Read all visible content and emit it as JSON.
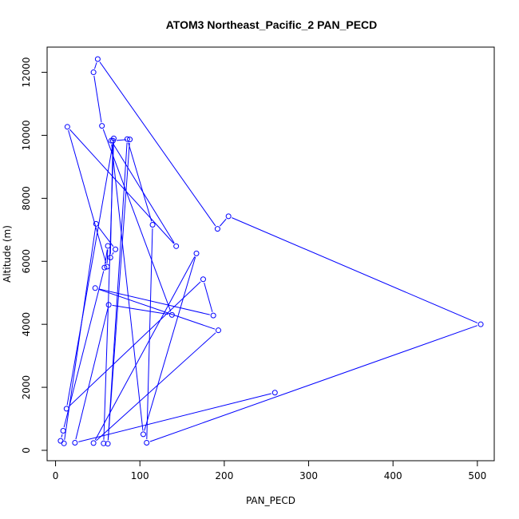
{
  "chart_data": {
    "type": "line",
    "title": "ATOM3 Northeast_Pacific_2 PAN_PECD",
    "xlabel": "PAN_PECD",
    "ylabel": "Altitude (m)",
    "xlim": [
      -10,
      520
    ],
    "ylim": [
      -330,
      12800
    ],
    "xticks": [
      0,
      100,
      200,
      300,
      400,
      500
    ],
    "yticks": [
      0,
      2000,
      4000,
      6000,
      8000,
      10000,
      12000
    ],
    "grid": false,
    "legend": "none",
    "line_color": "#0000ff",
    "marker": "open-circle",
    "series": [
      {
        "x": [
          260,
          23,
          63,
          138,
          55,
          45,
          50,
          192,
          205,
          504,
          108,
          115,
          85,
          62,
          88,
          68,
          65,
          71,
          48,
          10,
          6,
          9,
          58,
          62,
          61,
          14,
          143,
          66,
          104,
          167,
          45,
          193,
          47,
          187,
          175,
          13,
          69,
          57
        ],
        "y": [
          1830,
          240,
          4620,
          4300,
          10300,
          12000,
          12420,
          7030,
          7430,
          4000,
          240,
          7160,
          9880,
          210,
          9870,
          9830,
          6120,
          6380,
          7190,
          220,
          300,
          620,
          5800,
          6490,
          5830,
          10270,
          6480,
          9830,
          510,
          6250,
          230,
          3810,
          5150,
          4280,
          5430,
          1320,
          9900,
          220
        ]
      }
    ]
  }
}
